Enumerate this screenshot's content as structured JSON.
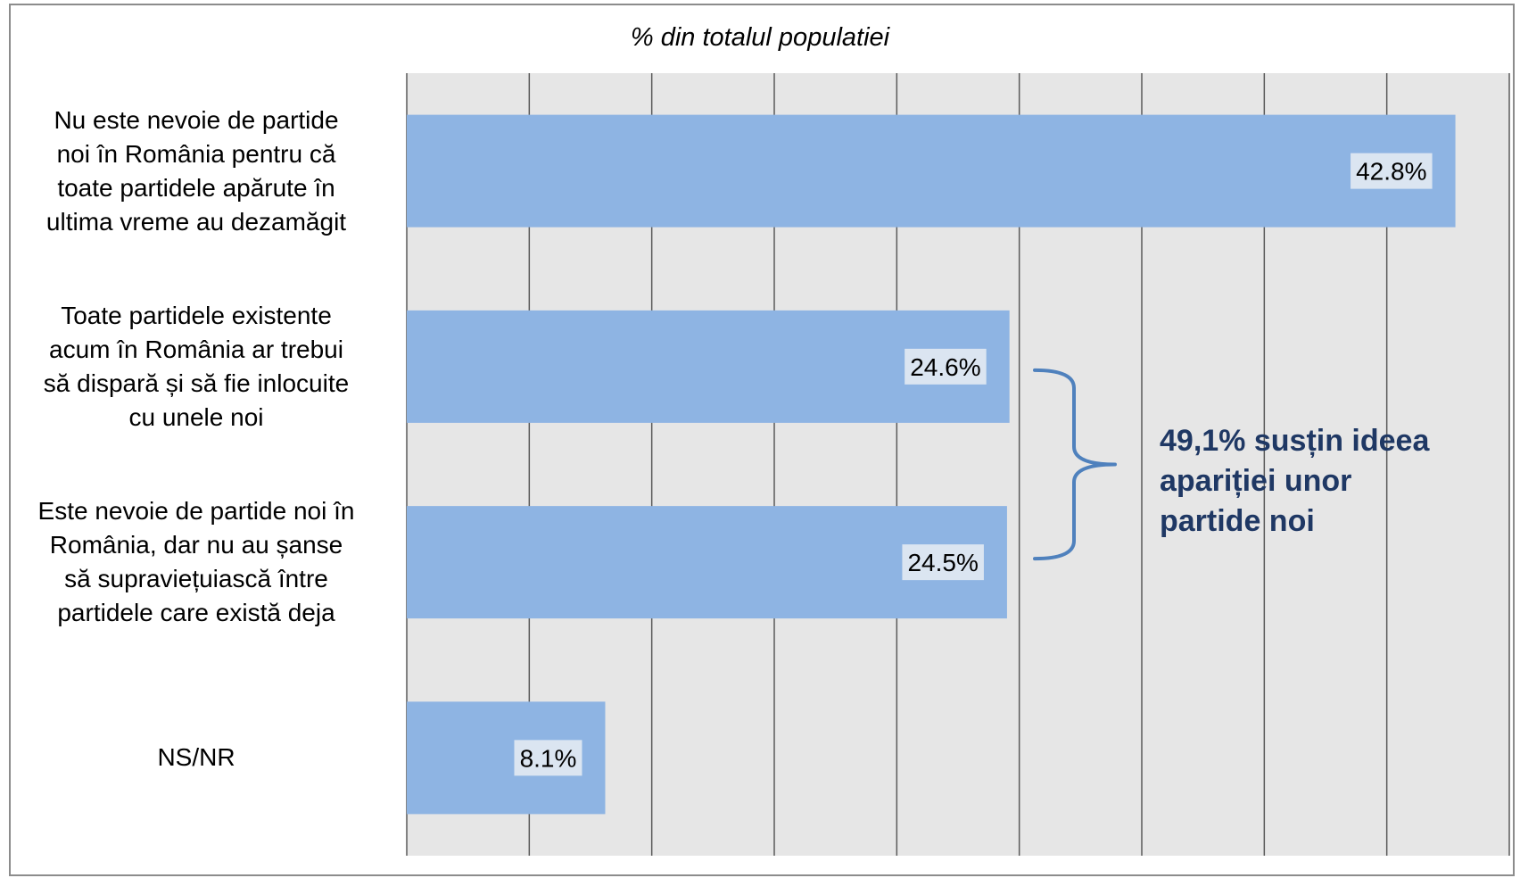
{
  "chart_data": {
    "type": "bar",
    "orientation": "horizontal",
    "title": "% din totalul populatiei",
    "categories": [
      "Nu este nevoie de partide noi în România pentru că toate partidele apărute în ultima vreme au dezamăgit",
      "Toate partidele existente acum în România ar trebui să dispară și să fie inlocuite cu unele noi",
      "Este nevoie de partide noi în România, dar nu au șanse să supraviețuiască între partidele care există deja",
      "NS/NR"
    ],
    "category_lines": [
      [
        "Nu este nevoie de partide",
        "noi în România pentru că",
        "toate partidele apărute în",
        "ultima vreme au dezamăgit"
      ],
      [
        "Toate partidele existente",
        "acum în România ar trebui",
        "să dispară și să fie inlocuite",
        "cu unele noi"
      ],
      [
        "Este nevoie de partide noi în",
        "România, dar nu au șanse",
        "să supraviețuiască între",
        "partidele care există deja"
      ],
      [
        "NS/NR"
      ]
    ],
    "values": [
      42.8,
      24.6,
      24.5,
      8.1
    ],
    "data_labels": [
      "42.8%",
      "24.6%",
      "24.5%",
      "8.1%"
    ],
    "xlim": [
      0,
      45
    ],
    "grid": "vertical",
    "bar_color": "#8eb4e3",
    "plot_background": "#e6e6e6",
    "annotation": {
      "lines": [
        "49,1% susțin ideea",
        "apariției unor",
        "partide noi"
      ],
      "brace_covers": [
        1,
        2
      ],
      "color": "#1f3864",
      "brace_color": "#4f81bd"
    }
  }
}
